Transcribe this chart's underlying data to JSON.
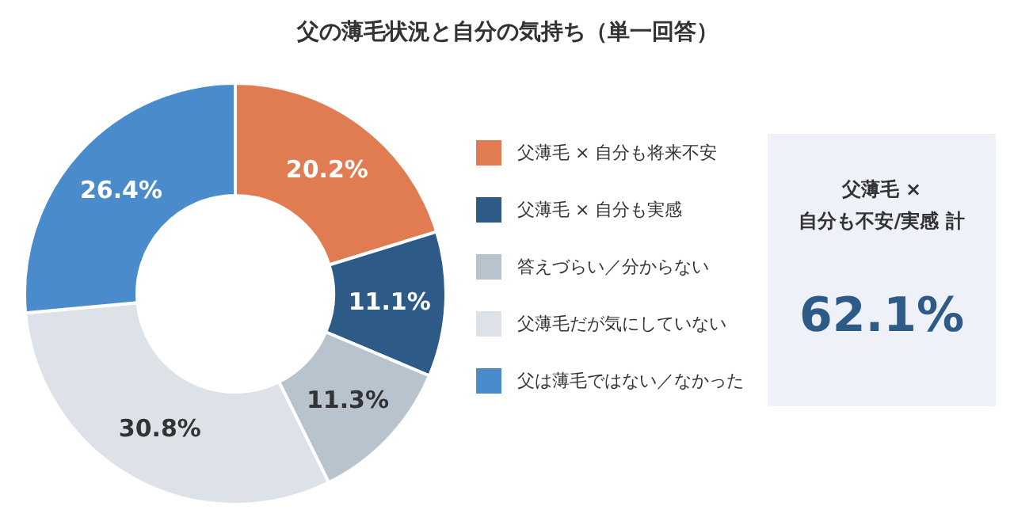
{
  "chart_data": {
    "type": "donut",
    "title": "父の薄毛状況と自分の気持ち（単一回答）",
    "categories": [
      "父薄毛 × 自分も将来不安",
      "父薄毛 × 自分も実感",
      "答えづらい／分からない",
      "父薄毛だが気にしていない",
      "父は薄毛ではない／なかった"
    ],
    "values": [
      20.2,
      11.1,
      11.3,
      30.8,
      26.4
    ],
    "value_labels": [
      "20.2%",
      "11.1%",
      "11.3%",
      "30.8%",
      "26.4%"
    ],
    "colors": [
      "#e07b52",
      "#2e5a88",
      "#b9c3ce",
      "#dde2e8",
      "#4a8ccb"
    ],
    "legend": "right",
    "annotations": [
      "父薄毛 ×\n自分も不安/実感 計",
      "62.1%"
    ]
  }
}
